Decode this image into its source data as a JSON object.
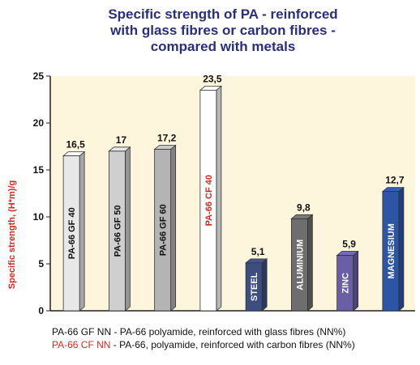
{
  "title_lines": [
    "Specific strength of PA - reinforced",
    "with glass fibres or carbon fibres -",
    "compared with metals"
  ],
  "legend": {
    "line1": "PA-66 GF NN - PA-66 polyamide, reinforced with glass fibres (NN%)",
    "line2_key": "PA-66 CF NN",
    "line2_rest": " - PA-66, polyamide, reinforced with carbon fibres (NN%)"
  },
  "colors": {
    "title": "#2b2e7a",
    "background": "#fdf5dc",
    "accent_red": "#d4281e",
    "white_text": "#ffffff",
    "dark_text": "#111111"
  },
  "chart_data": {
    "type": "bar",
    "title": "Specific strength of PA - reinforced with glass fibres or carbon fibres - compared with metals",
    "ylabel": "Specific strength, (H*m)/g",
    "ylim": [
      0,
      25
    ],
    "yticks": [
      "0",
      "5",
      "10",
      "15",
      "20",
      "25"
    ],
    "grid": false,
    "categories": [
      "PA-66 GF 40",
      "PA-66 GF 50",
      "PA-66 GF 60",
      "PA-66 CF 40",
      "STEEL",
      "ALUMINIUM",
      "ZINC",
      "MAGNESIUM"
    ],
    "values": [
      16.5,
      17,
      17.2,
      23.5,
      5.1,
      9.8,
      5.9,
      12.7
    ],
    "value_labels": [
      "16,5",
      "17",
      "17,2",
      "23,5",
      "5,1",
      "9,8",
      "5,9",
      "12,7"
    ],
    "bar_colors": [
      "#e8e8e8",
      "#cfcfcf",
      "#b4b4b4",
      "#ffffff",
      "#3c4d80",
      "#6e6e6e",
      "#6a5fa6",
      "#2c55a6"
    ],
    "label_colors": [
      "#111111",
      "#111111",
      "#111111",
      "#d4281e",
      "#ffffff",
      "#ffffff",
      "#ffffff",
      "#ffffff"
    ]
  }
}
